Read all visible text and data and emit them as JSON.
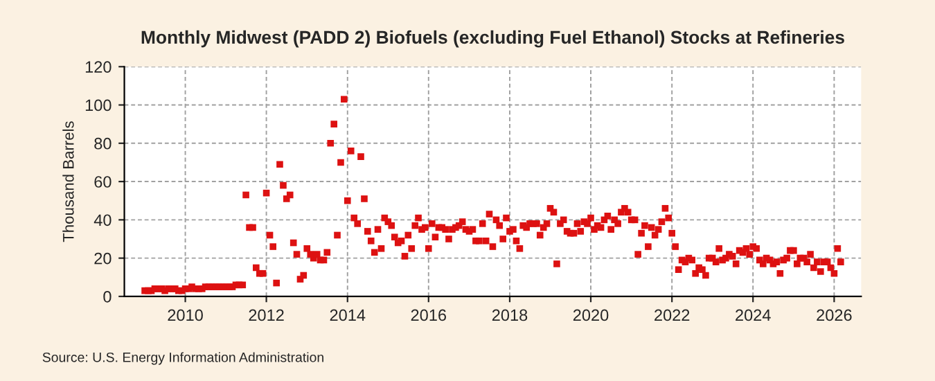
{
  "chart_data": {
    "type": "scatter",
    "title": "Monthly Midwest (PADD 2) Biofuels (excluding Fuel Ethanol) Stocks at Refineries",
    "ylabel": "Thousand Barrels",
    "annotations": [
      "Source: U.S. Energy Information Administration"
    ],
    "x": [
      "2009-01",
      "2009-02",
      "2009-03",
      "2009-04",
      "2009-05",
      "2009-06",
      "2009-07",
      "2009-08",
      "2009-09",
      "2009-10",
      "2009-11",
      "2009-12",
      "2010-01",
      "2010-02",
      "2010-03",
      "2010-04",
      "2010-05",
      "2010-06",
      "2010-07",
      "2010-08",
      "2010-09",
      "2010-10",
      "2010-11",
      "2010-12",
      "2011-01",
      "2011-02",
      "2011-03",
      "2011-04",
      "2011-05",
      "2011-06",
      "2011-07",
      "2011-08",
      "2011-09",
      "2011-10",
      "2011-11",
      "2011-12",
      "2012-01",
      "2012-02",
      "2012-03",
      "2012-04",
      "2012-05",
      "2012-06",
      "2012-07",
      "2012-08",
      "2012-09",
      "2012-10",
      "2012-11",
      "2012-12",
      "2013-01",
      "2013-02",
      "2013-03",
      "2013-04",
      "2013-05",
      "2013-06",
      "2013-07",
      "2013-08",
      "2013-09",
      "2013-10",
      "2013-11",
      "2013-12",
      "2014-01",
      "2014-02",
      "2014-03",
      "2014-04",
      "2014-05",
      "2014-06",
      "2014-07",
      "2014-08",
      "2014-09",
      "2014-10",
      "2014-11",
      "2014-12",
      "2015-01",
      "2015-02",
      "2015-03",
      "2015-04",
      "2015-05",
      "2015-06",
      "2015-07",
      "2015-08",
      "2015-09",
      "2015-10",
      "2015-11",
      "2015-12",
      "2016-01",
      "2016-02",
      "2016-03",
      "2016-04",
      "2016-05",
      "2016-06",
      "2016-07",
      "2016-08",
      "2016-09",
      "2016-10",
      "2016-11",
      "2016-12",
      "2017-01",
      "2017-02",
      "2017-03",
      "2017-04",
      "2017-05",
      "2017-06",
      "2017-07",
      "2017-08",
      "2017-09",
      "2017-10",
      "2017-11",
      "2017-12",
      "2018-01",
      "2018-02",
      "2018-03",
      "2018-04",
      "2018-05",
      "2018-06",
      "2018-07",
      "2018-08",
      "2018-09",
      "2018-10",
      "2018-11",
      "2018-12",
      "2019-01",
      "2019-02",
      "2019-03",
      "2019-04",
      "2019-05",
      "2019-06",
      "2019-07",
      "2019-08",
      "2019-09",
      "2019-10",
      "2019-11",
      "2019-12",
      "2020-01",
      "2020-02",
      "2020-03",
      "2020-04",
      "2020-05",
      "2020-06",
      "2020-07",
      "2020-08",
      "2020-09",
      "2020-10",
      "2020-11",
      "2020-12",
      "2021-01",
      "2021-02",
      "2021-03",
      "2021-04",
      "2021-05",
      "2021-06",
      "2021-07",
      "2021-08",
      "2021-09",
      "2021-10",
      "2021-11",
      "2021-12",
      "2022-01",
      "2022-02",
      "2022-03",
      "2022-04",
      "2022-05",
      "2022-06",
      "2022-07",
      "2022-08",
      "2022-09",
      "2022-10",
      "2022-11",
      "2022-12",
      "2023-01",
      "2023-02",
      "2023-03",
      "2023-04",
      "2023-05",
      "2023-06",
      "2023-07",
      "2023-08",
      "2023-09",
      "2023-10",
      "2023-11",
      "2023-12",
      "2024-01",
      "2024-02",
      "2024-03",
      "2024-04",
      "2024-05",
      "2024-06",
      "2024-07",
      "2024-08",
      "2024-09",
      "2024-10",
      "2024-11",
      "2024-12",
      "2025-01",
      "2025-02",
      "2025-03",
      "2025-04",
      "2025-05",
      "2025-06",
      "2025-07",
      "2025-08",
      "2025-09",
      "2025-10",
      "2025-11",
      "2025-12",
      "2026-01",
      "2026-02",
      "2026-03"
    ],
    "values": [
      3,
      3,
      3,
      4,
      4,
      4,
      3,
      4,
      4,
      4,
      3,
      3,
      4,
      4,
      5,
      4,
      4,
      4,
      5,
      5,
      5,
      5,
      5,
      5,
      5,
      5,
      5,
      6,
      6,
      6,
      53,
      36,
      36,
      15,
      12,
      12,
      54,
      32,
      26,
      7,
      69,
      58,
      51,
      53,
      28,
      22,
      9,
      11,
      25,
      22,
      20,
      22,
      19,
      19,
      23,
      80,
      90,
      32,
      70,
      103,
      50,
      76,
      41,
      38,
      73,
      51,
      34,
      29,
      23,
      35,
      25,
      41,
      39,
      37,
      31,
      28,
      29,
      21,
      32,
      25,
      37,
      41,
      35,
      36,
      25,
      38,
      31,
      36,
      36,
      35,
      30,
      35,
      36,
      37,
      39,
      35,
      34,
      35,
      29,
      29,
      38,
      29,
      43,
      26,
      40,
      37,
      30,
      41,
      34,
      35,
      29,
      25,
      37,
      36,
      38,
      38,
      38,
      32,
      36,
      38,
      46,
      44,
      17,
      38,
      40,
      34,
      33,
      33,
      38,
      34,
      39,
      38,
      41,
      35,
      37,
      36,
      40,
      42,
      35,
      40,
      38,
      44,
      46,
      44,
      40,
      40,
      22,
      33,
      37,
      26,
      36,
      32,
      35,
      39,
      46,
      41,
      33,
      26,
      14,
      19,
      18,
      20,
      19,
      12,
      15,
      14,
      11,
      20,
      20,
      18,
      25,
      19,
      20,
      22,
      21,
      17,
      24,
      23,
      25,
      22,
      26,
      25,
      19,
      17,
      20,
      19,
      17,
      18,
      12,
      19,
      20,
      24,
      24,
      17,
      20,
      20,
      18,
      22,
      15,
      18,
      13,
      18,
      18,
      15,
      12,
      25,
      18
    ],
    "color": "#dd1111",
    "marker": "square",
    "xlim": [
      "2008-07",
      "2026-09"
    ],
    "xticks": [
      {
        "value": "2010-01",
        "label": "2010"
      },
      {
        "value": "2012-01",
        "label": "2012"
      },
      {
        "value": "2014-01",
        "label": "2014"
      },
      {
        "value": "2016-01",
        "label": "2016"
      },
      {
        "value": "2018-01",
        "label": "2018"
      },
      {
        "value": "2020-01",
        "label": "2020"
      },
      {
        "value": "2022-01",
        "label": "2022"
      },
      {
        "value": "2024-01",
        "label": "2024"
      },
      {
        "value": "2026-01",
        "label": "2026"
      }
    ],
    "ylim": [
      0,
      120
    ],
    "yticks": [
      0,
      20,
      40,
      60,
      80,
      100,
      120
    ],
    "grid": true
  }
}
